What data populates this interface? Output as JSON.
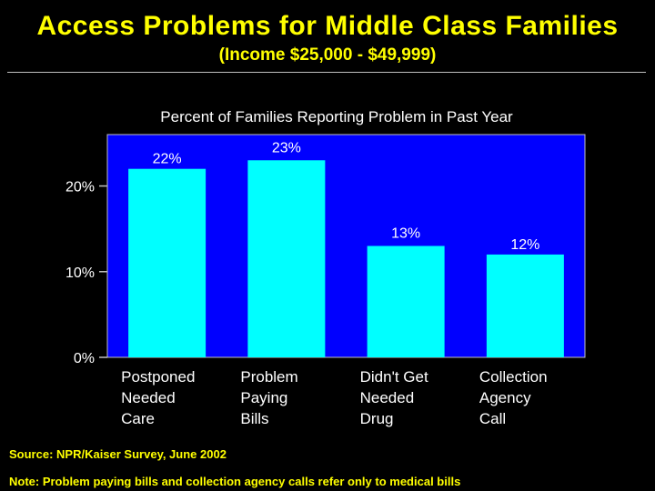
{
  "page": {
    "title": "Access Problems for Middle Class Families",
    "subtitle": "(Income $25,000 - $49,999)",
    "source": "Source: NPR/Kaiser Survey, June 2002",
    "note": "Note: Problem paying bills and collection agency calls refer only to medical bills"
  },
  "colors": {
    "background": "#000000",
    "heading": "#FFFF00",
    "plot_area": "#0000FF",
    "bar": "#00FFFF",
    "text": "#FFFFFF"
  },
  "chart_data": {
    "type": "bar",
    "title": "Percent of Families Reporting Problem in Past Year",
    "xlabel": "",
    "ylabel": "",
    "ylim": [
      0,
      26
    ],
    "yticks": [
      0,
      10,
      20
    ],
    "ytick_labels": [
      "0%",
      "10%",
      "20%"
    ],
    "grid": false,
    "categories": [
      [
        "Postponed",
        "Needed",
        "Care"
      ],
      [
        "Problem",
        "Paying",
        "Bills"
      ],
      [
        "Didn't Get",
        "Needed",
        "Drug"
      ],
      [
        "Collection",
        "Agency",
        "Call"
      ]
    ],
    "values": [
      22,
      23,
      13,
      12
    ],
    "data_labels": [
      "22%",
      "23%",
      "13%",
      "12%"
    ]
  }
}
